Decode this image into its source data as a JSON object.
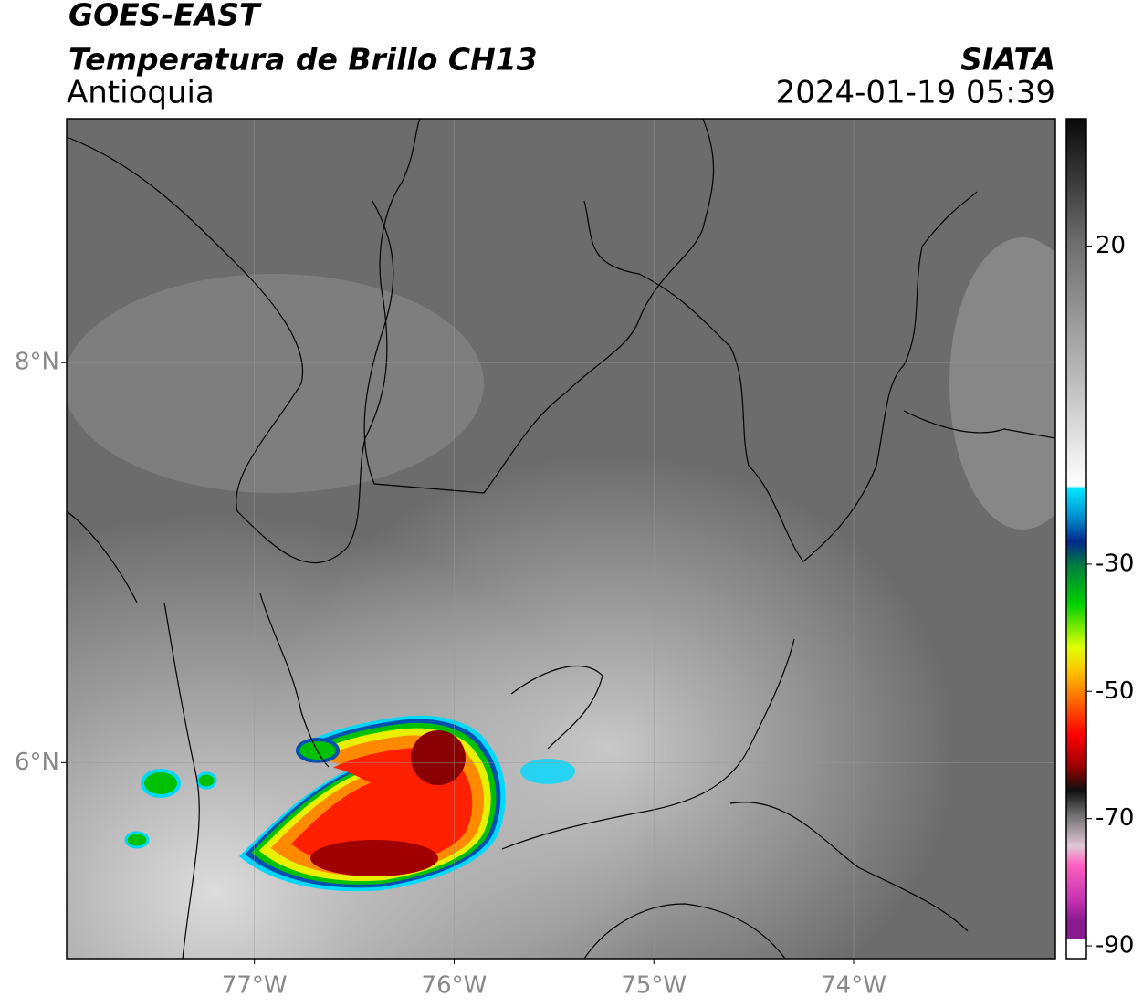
{
  "header": {
    "title": "GOES-EAST",
    "subtitle": "Temperatura de Brillo CH13",
    "region": "Antioquia",
    "source": "SIATA",
    "datetime": "2024-01-19 05:39"
  },
  "map": {
    "xlim": [
      -77.94,
      -72.99
    ],
    "ylim": [
      5.02,
      9.22
    ],
    "xticks": [
      {
        "value": -77,
        "label": "77°W"
      },
      {
        "value": -76,
        "label": "76°W"
      },
      {
        "value": -75,
        "label": "75°W"
      },
      {
        "value": -74,
        "label": "74°W"
      }
    ],
    "yticks": [
      {
        "value": 6,
        "label": "6°N"
      },
      {
        "value": 8,
        "label": "8°N"
      }
    ],
    "grid": true
  },
  "colorbar": {
    "lim": [
      -92,
      40
    ],
    "ticks": [
      20,
      -30,
      -50,
      -70,
      -90
    ],
    "colormap": [
      [
        40,
        "#0a0a0a"
      ],
      [
        30,
        "#3a3a3a"
      ],
      [
        20,
        "#6e6e6e"
      ],
      [
        0,
        "#b4b4b4"
      ],
      [
        -19,
        "#ffffff"
      ],
      [
        -19.5,
        "#00e5ff"
      ],
      [
        -24,
        "#0090d0"
      ],
      [
        -28,
        "#002a8a"
      ],
      [
        -32,
        "#008040"
      ],
      [
        -38,
        "#00d000"
      ],
      [
        -45,
        "#e0ff00"
      ],
      [
        -49,
        "#ffc000"
      ],
      [
        -54,
        "#ff6000"
      ],
      [
        -59,
        "#ff0000"
      ],
      [
        -64,
        "#a00000"
      ],
      [
        -68,
        "#101010"
      ],
      [
        -72,
        "#707070"
      ],
      [
        -77,
        "#e0c8d8"
      ],
      [
        -80,
        "#ff60c0"
      ],
      [
        -86,
        "#c030b0"
      ],
      [
        -89,
        "#8a1a90"
      ]
    ]
  }
}
